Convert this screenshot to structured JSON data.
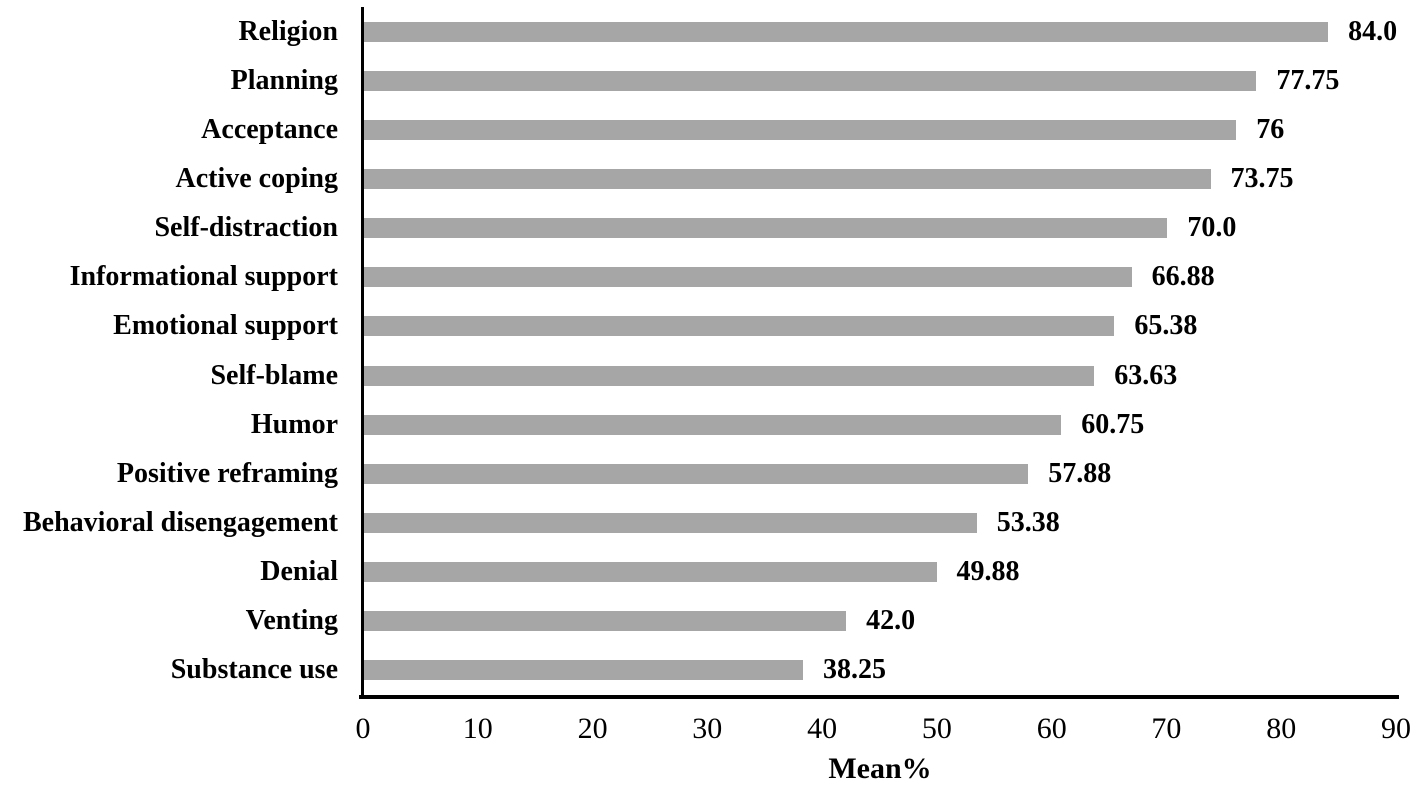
{
  "chart_data": {
    "type": "bar",
    "orientation": "horizontal",
    "categories": [
      "Religion",
      "Planning",
      "Acceptance",
      "Active coping",
      "Self-distraction",
      "Informational support",
      "Emotional support",
      "Self-blame",
      "Humor",
      "Positive reframing",
      "Behavioral disengagement",
      "Denial",
      "Venting",
      "Substance use"
    ],
    "values": [
      84.0,
      77.75,
      76,
      73.75,
      70.0,
      66.88,
      65.38,
      63.63,
      60.75,
      57.88,
      53.38,
      49.88,
      42.0,
      38.25
    ],
    "value_labels": [
      "84.0",
      "77.75",
      "76",
      "73.75",
      "70.0",
      "66.88",
      "65.38",
      "63.63",
      "60.75",
      "57.88",
      "53.38",
      "49.88",
      "42.0",
      "38.25"
    ],
    "title": "",
    "xlabel": "Mean%",
    "ylabel": "",
    "xlim": [
      0,
      90
    ],
    "xticks": [
      0,
      10,
      20,
      30,
      40,
      50,
      60,
      70,
      80,
      90
    ],
    "grid": false,
    "legend": null,
    "data_labels": true,
    "bar_color": "#a6a6a6",
    "axis_color": "#000000",
    "text_color": "#000000",
    "background_color": "#ffffff"
  }
}
